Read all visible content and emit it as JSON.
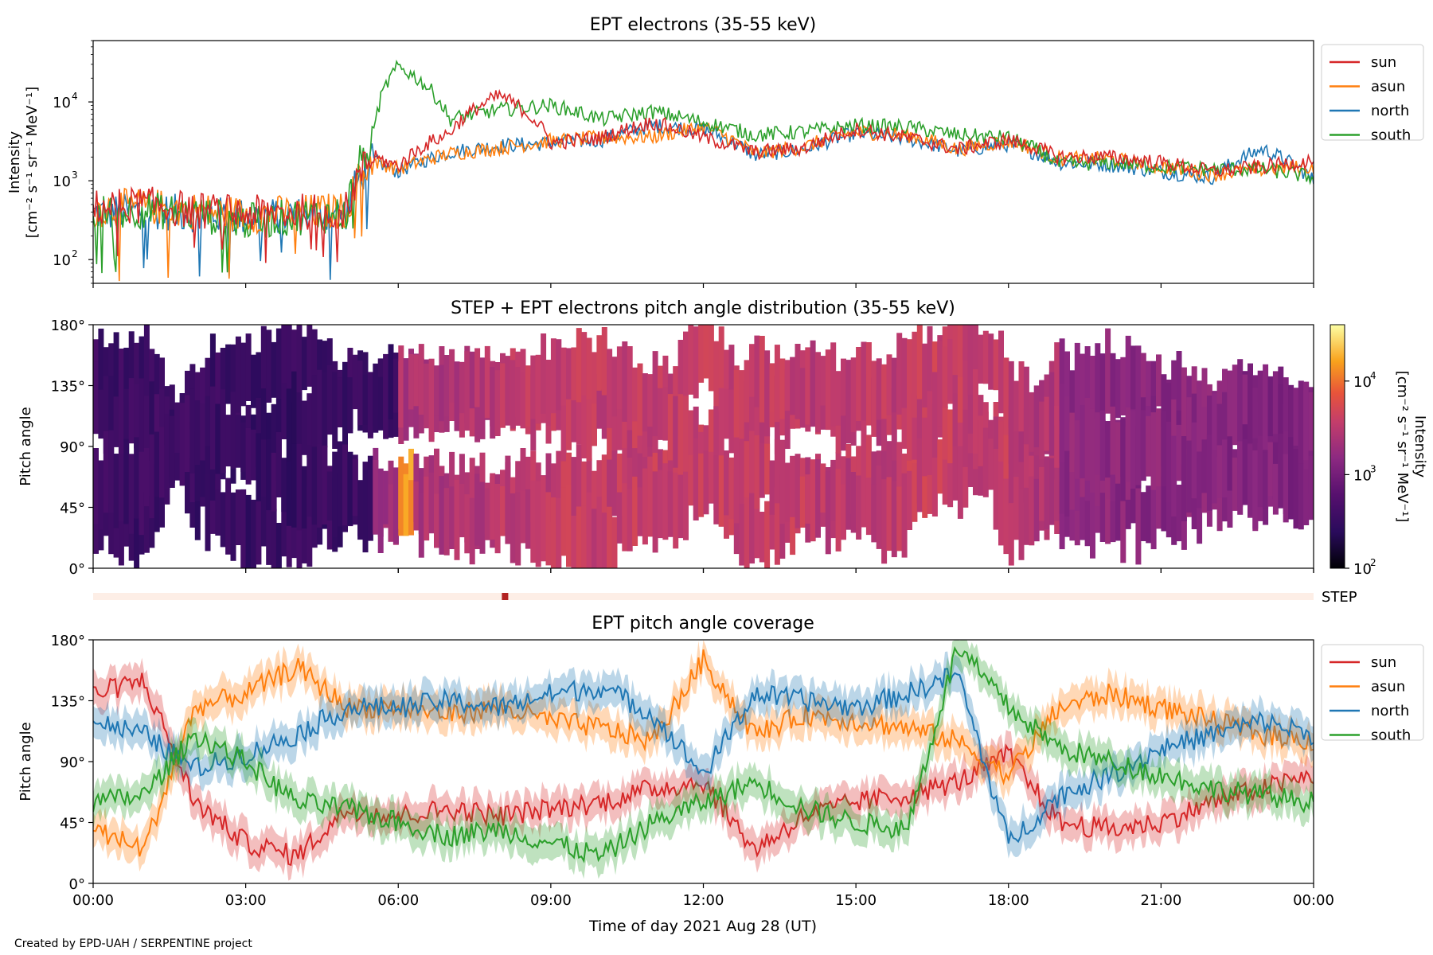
{
  "credit": "Created by EPD-UAH / SERPENTINE project",
  "xaxis": {
    "label": "Time of day 2021 Aug 28 (UT)",
    "ticks": [
      "00:00",
      "03:00",
      "06:00",
      "09:00",
      "12:00",
      "15:00",
      "18:00",
      "21:00",
      "00:00"
    ]
  },
  "colors": {
    "sun": "#d62728",
    "asun": "#ff7f0e",
    "north": "#1f77b4",
    "south": "#2ca02c",
    "step_bar": "#b22222"
  },
  "chart_data": [
    {
      "type": "line",
      "title": "EPT electrons (35-55 keV)",
      "ylabel": "Intensity",
      "yunit": "[cm⁻² s⁻¹ sr⁻¹ MeV⁻¹]",
      "yscale": "log",
      "ylim": [
        50,
        60000
      ],
      "yticks": [
        {
          "v": 100,
          "base": "10",
          "exp": "2"
        },
        {
          "v": 1000,
          "base": "10",
          "exp": "3"
        },
        {
          "v": 10000,
          "base": "10",
          "exp": "4"
        }
      ],
      "legend": "outside-right",
      "x_hours": [
        0,
        1,
        2,
        3,
        4,
        5,
        5.5,
        6,
        7,
        8,
        9,
        10,
        11,
        12,
        13,
        14,
        15,
        16,
        17,
        18,
        19,
        20,
        21,
        22,
        23,
        24
      ],
      "series": [
        {
          "name": "sun",
          "values": [
            450,
            500,
            420,
            380,
            400,
            430,
            2000,
            1500,
            4000,
            12000,
            3000,
            3500,
            5500,
            3500,
            2300,
            2600,
            4500,
            3500,
            2500,
            3300,
            2000,
            2000,
            1700,
            1300,
            1500,
            1800
          ]
        },
        {
          "name": "asun",
          "values": [
            430,
            480,
            420,
            370,
            390,
            420,
            1800,
            1400,
            2200,
            2600,
            3200,
            3500,
            3600,
            4800,
            2200,
            2700,
            4200,
            3800,
            2500,
            3200,
            1900,
            1900,
            1500,
            1200,
            1400,
            1500
          ]
        },
        {
          "name": "north",
          "values": [
            380,
            420,
            380,
            350,
            370,
            400,
            1800,
            1300,
            2300,
            2800,
            3000,
            3300,
            5000,
            4500,
            2100,
            2500,
            4000,
            3400,
            2400,
            2900,
            1700,
            1600,
            1300,
            1100,
            2500,
            1000
          ]
        },
        {
          "name": "south",
          "values": [
            380,
            430,
            380,
            300,
            350,
            380,
            3000,
            28000,
            6000,
            8000,
            9000,
            6000,
            7500,
            5500,
            3800,
            4200,
            5000,
            4800,
            3800,
            3500,
            1600,
            1700,
            1500,
            1400,
            1400,
            1100
          ]
        }
      ]
    },
    {
      "type": "heatmap",
      "title": "STEP + EPT electrons pitch angle distribution (35-55 keV)",
      "ylabel": "Pitch angle",
      "yticks": [
        "0°",
        "45°",
        "90°",
        "135°",
        "180°"
      ],
      "ylim": [
        0,
        180
      ],
      "colorbar": {
        "label": "Intensity",
        "unit": "[cm⁻² s⁻¹ sr⁻¹ MeV⁻¹]",
        "scale": "log",
        "range": [
          100,
          40000
        ],
        "ticks": [
          {
            "v": 100,
            "base": "10",
            "exp": "2"
          },
          {
            "v": 1000,
            "base": "10",
            "exp": "3"
          },
          {
            "v": 10000,
            "base": "10",
            "exp": "4"
          }
        ],
        "colormap": "inferno"
      },
      "hourly_intensity": [
        350,
        360,
        340,
        320,
        330,
        340,
        2500,
        2800,
        3300,
        3600,
        3600,
        3700,
        3800,
        3600,
        3200,
        3300,
        3900,
        3600,
        2700,
        1500,
        1400,
        1400,
        1300,
        1200,
        1200
      ]
    },
    {
      "type": "line",
      "title": "EPT pitch angle coverage",
      "ylabel": "Pitch angle",
      "yticks": [
        "0°",
        "45°",
        "90°",
        "135°",
        "180°"
      ],
      "ylim": [
        0,
        180
      ],
      "legend": "outside-right",
      "x_hours": [
        0,
        1,
        2,
        3,
        4,
        5,
        6,
        7,
        8,
        9,
        10,
        11,
        12,
        13,
        14,
        15,
        16,
        17,
        18,
        19,
        20,
        21,
        22,
        23,
        24
      ],
      "series": [
        {
          "name": "sun",
          "values": [
            140,
            150,
            60,
            30,
            20,
            55,
            50,
            55,
            50,
            55,
            60,
            70,
            75,
            25,
            50,
            60,
            65,
            75,
            95,
            45,
            40,
            45,
            60,
            70,
            80
          ]
        },
        {
          "name": "asun",
          "values": [
            40,
            25,
            130,
            140,
            160,
            130,
            130,
            125,
            130,
            120,
            115,
            105,
            165,
            110,
            125,
            120,
            115,
            105,
            80,
            130,
            140,
            130,
            120,
            110,
            105
          ]
        },
        {
          "name": "north",
          "values": [
            120,
            110,
            85,
            95,
            110,
            130,
            130,
            135,
            130,
            140,
            145,
            125,
            80,
            140,
            135,
            130,
            140,
            155,
            30,
            65,
            80,
            100,
            110,
            120,
            110
          ]
        },
        {
          "name": "south",
          "values": [
            60,
            65,
            110,
            90,
            60,
            55,
            45,
            35,
            40,
            30,
            20,
            45,
            60,
            75,
            55,
            45,
            40,
            175,
            130,
            100,
            90,
            80,
            70,
            65,
            60
          ]
        }
      ]
    }
  ],
  "step_row": {
    "label": "STEP",
    "marker_hour": 8.1
  }
}
